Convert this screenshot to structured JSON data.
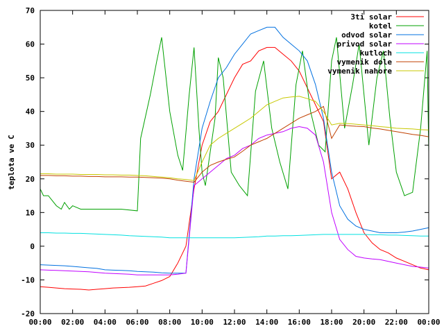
{
  "chart_data": {
    "type": "line",
    "y_label": "teplota ve C",
    "xlim": [
      0,
      24
    ],
    "ylim": [
      -20,
      70
    ],
    "yticks": [
      -20,
      -10,
      0,
      10,
      20,
      30,
      40,
      50,
      60,
      70
    ],
    "xticks": [
      {
        "value": 0,
        "label": "00:00"
      },
      {
        "value": 2,
        "label": "02:00"
      },
      {
        "value": 4,
        "label": "04:00"
      },
      {
        "value": 6,
        "label": "06:00"
      },
      {
        "value": 8,
        "label": "08:00"
      },
      {
        "value": 10,
        "label": "10:00"
      },
      {
        "value": 12,
        "label": "12:00"
      },
      {
        "value": 14,
        "label": "14:00"
      },
      {
        "value": 16,
        "label": "16:00"
      },
      {
        "value": 18,
        "label": "18:00"
      },
      {
        "value": 20,
        "label": "20:00"
      },
      {
        "value": 22,
        "label": "22:00"
      },
      {
        "value": 24,
        "label": "00:00"
      }
    ],
    "grid": false,
    "legend": "top-right",
    "x": [
      0,
      0.5,
      1,
      1.5,
      2,
      2.5,
      3,
      3.5,
      4,
      4.5,
      5,
      5.5,
      6,
      6.5,
      7,
      7.5,
      8,
      8.5,
      9,
      9.5,
      10,
      10.5,
      11,
      11.5,
      12,
      12.5,
      13,
      13.5,
      14,
      14.5,
      15,
      15.5,
      16,
      16.5,
      17,
      17.5,
      18,
      18.5,
      19,
      19.5,
      20,
      20.5,
      21,
      21.5,
      22,
      22.5,
      23,
      23.5,
      24
    ],
    "series": [
      {
        "name": "3ti solar",
        "color": "#ff0000",
        "values": [
          -12,
          -12.2,
          -12.4,
          -12.6,
          -12.7,
          -12.8,
          -13,
          -12.8,
          -12.6,
          -12.4,
          -12.3,
          -12.2,
          -12,
          -11.8,
          -11,
          -10.2,
          -9,
          -5,
          0,
          17,
          30,
          37,
          40,
          45,
          50,
          54,
          55,
          58,
          59,
          59,
          57,
          55,
          52,
          47,
          42,
          37,
          20,
          22,
          17,
          10,
          4,
          1,
          -1,
          -2,
          -3.5,
          -4.5,
          -5.5,
          -6.5,
          -7
        ]
      },
      {
        "name": "kotel",
        "color": "#00a000",
        "x": [
          0,
          0.2,
          0.5,
          1,
          1.3,
          1.5,
          1.8,
          2,
          2.5,
          3,
          4,
          5,
          6,
          6.2,
          6.8,
          7.2,
          7.5,
          8,
          8.5,
          8.8,
          9.2,
          9.5,
          9.8,
          10,
          10.2,
          10.8,
          11,
          11.3,
          11.8,
          12.3,
          12.8,
          13.3,
          13.8,
          14.3,
          14.8,
          15.3,
          15.8,
          16.2,
          16.7,
          17.2,
          17.6,
          18,
          18.3,
          18.8,
          19.3,
          19.7,
          20.3,
          20.8,
          21.2,
          21.6,
          22,
          22.5,
          23,
          23.5,
          23.9,
          24
        ],
        "values": [
          17,
          15,
          15,
          12,
          11,
          13,
          11,
          12,
          11,
          11,
          11,
          11,
          10.5,
          32,
          45,
          55,
          62,
          40,
          27,
          22.5,
          45,
          59,
          35,
          22,
          18,
          38,
          56,
          50,
          22,
          18,
          15,
          46,
          55,
          35,
          25,
          17,
          48,
          58,
          40,
          30,
          28,
          55,
          62,
          35,
          48,
          60,
          30,
          50,
          58,
          38,
          22,
          15,
          16,
          35,
          58,
          28
        ]
      },
      {
        "name": "odvod solar",
        "color": "#0070e0",
        "values": [
          -5.5,
          -5.6,
          -5.7,
          -5.8,
          -6,
          -6.2,
          -6.4,
          -6.6,
          -7,
          -7.1,
          -7.2,
          -7.3,
          -7.5,
          -7.6,
          -7.7,
          -7.9,
          -8,
          -8,
          -8,
          20,
          35,
          43,
          50,
          53,
          57,
          60,
          63,
          64,
          65,
          65,
          62,
          60,
          58,
          55,
          48,
          38,
          22,
          12,
          8,
          6,
          5,
          4.5,
          4,
          4,
          4,
          4.2,
          4.5,
          5,
          5.5
        ]
      },
      {
        "name": "privod solar",
        "color": "#c000ff",
        "values": [
          -7,
          -7.1,
          -7.2,
          -7.3,
          -7.4,
          -7.5,
          -7.6,
          -7.8,
          -8,
          -8.1,
          -8.2,
          -8.3,
          -8.5,
          -8.5,
          -8.5,
          -8.5,
          -8.5,
          -8.3,
          -8,
          18,
          20,
          22,
          24,
          26,
          27,
          29,
          30,
          32,
          33,
          33.5,
          34,
          35,
          35.5,
          35,
          33,
          25,
          10,
          2,
          -1,
          -3,
          -3.5,
          -3.8,
          -4,
          -4.5,
          -5,
          -5.5,
          -6,
          -6.2,
          -6.5
        ]
      },
      {
        "name": "kutloch",
        "color": "#00e0e0",
        "values": [
          4,
          4,
          3.9,
          3.9,
          3.8,
          3.8,
          3.7,
          3.6,
          3.5,
          3.4,
          3.3,
          3.1,
          3,
          2.9,
          2.8,
          2.7,
          2.5,
          2.5,
          2.5,
          2.5,
          2.5,
          2.5,
          2.5,
          2.5,
          2.5,
          2.6,
          2.7,
          2.8,
          3,
          3,
          3.1,
          3.1,
          3.2,
          3.3,
          3.4,
          3.5,
          3.5,
          3.5,
          3.5,
          3.5,
          3.5,
          3.4,
          3.4,
          3.3,
          3.3,
          3.2,
          3.1,
          3,
          3
        ]
      },
      {
        "name": "vymenik dole",
        "color": "#c04000",
        "values": [
          21,
          21,
          20.9,
          20.9,
          20.8,
          20.8,
          20.7,
          20.7,
          20.6,
          20.6,
          20.6,
          20.5,
          20.5,
          20.4,
          20.3,
          20.2,
          20,
          19.6,
          19.3,
          19,
          22,
          24,
          25,
          25.8,
          26.5,
          28.2,
          30,
          31,
          32,
          33.5,
          35,
          36.5,
          38,
          39,
          40,
          41.5,
          32,
          36,
          35.8,
          35.6,
          35.5,
          35.1,
          34.8,
          34.4,
          34,
          33.6,
          33.2,
          32.9,
          32.5
        ]
      },
      {
        "name": "vymenik nahore",
        "color": "#c8c800",
        "values": [
          21.5,
          21.5,
          21.4,
          21.4,
          21.4,
          21.3,
          21.3,
          21.3,
          21.2,
          21.2,
          21.1,
          21.1,
          21,
          20.9,
          20.7,
          20.5,
          20.3,
          20,
          19.8,
          19.5,
          25,
          30,
          32,
          33.5,
          35,
          36.5,
          38,
          40,
          42,
          43,
          44,
          44.3,
          44.5,
          43.8,
          43,
          40,
          36,
          36.5,
          36.4,
          36.2,
          36,
          35.8,
          35.5,
          35.3,
          35,
          34.9,
          34.8,
          34.6,
          34.5
        ]
      }
    ]
  }
}
